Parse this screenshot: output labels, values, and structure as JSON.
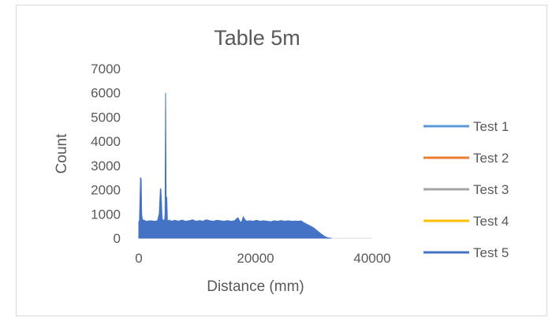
{
  "chart_data": {
    "type": "area",
    "title": "Table 5m",
    "xlabel": "Distance (mm)",
    "ylabel": "Count",
    "xlim": [
      0,
      40000
    ],
    "ylim": [
      0,
      7000
    ],
    "x_ticks": [
      "0",
      "20000",
      "40000"
    ],
    "y_ticks": [
      "0",
      "1000",
      "2000",
      "3000",
      "4000",
      "5000",
      "6000",
      "7000"
    ],
    "grid": false,
    "legend_position": "right",
    "series": [
      {
        "name": "Test 1",
        "color": "#5b9bd5",
        "x": [],
        "y": []
      },
      {
        "name": "Test 2",
        "color": "#ed7d31",
        "x": [],
        "y": []
      },
      {
        "name": "Test 3",
        "color": "#a5a5a5",
        "x": [],
        "y": []
      },
      {
        "name": "Test 4",
        "color": "#ffc000",
        "x": [],
        "y": []
      },
      {
        "name": "Test 5",
        "color": "#4472c4",
        "x": [
          0,
          100,
          300,
          400,
          500,
          600,
          700,
          800,
          900,
          1200,
          2000,
          2800,
          3200,
          3500,
          3700,
          3800,
          4000,
          4200,
          4400,
          4500,
          4600,
          4700,
          4800,
          4900,
          5000,
          5200,
          5600,
          6200,
          6800,
          7400,
          8000,
          8600,
          9200,
          9800,
          10400,
          11000,
          11600,
          12200,
          12800,
          13400,
          14000,
          14600,
          15200,
          15800,
          16400,
          17000,
          17300,
          17600,
          17900,
          18200,
          18500,
          19000,
          19600,
          20200,
          20800,
          21400,
          22000,
          22600,
          23200,
          23800,
          24400,
          25000,
          25600,
          26200,
          26800,
          27400,
          27800,
          28200,
          28600,
          29000,
          29400,
          29800,
          30200,
          30600,
          31000,
          31400,
          31800,
          32200,
          32600,
          33000
        ],
        "y": [
          700,
          600,
          2500,
          2450,
          1000,
          800,
          760,
          720,
          750,
          700,
          720,
          700,
          720,
          1000,
          2050,
          2000,
          800,
          750,
          700,
          1000,
          6000,
          800,
          1700,
          750,
          700,
          750,
          700,
          740,
          700,
          750,
          700,
          720,
          760,
          700,
          730,
          700,
          760,
          720,
          700,
          740,
          720,
          700,
          730,
          700,
          720,
          850,
          700,
          650,
          880,
          760,
          700,
          720,
          700,
          740,
          700,
          720,
          700,
          680,
          720,
          700,
          730,
          700,
          720,
          700,
          710,
          700,
          720,
          650,
          600,
          550,
          500,
          450,
          380,
          300,
          220,
          150,
          80,
          30,
          10,
          0
        ]
      }
    ]
  }
}
